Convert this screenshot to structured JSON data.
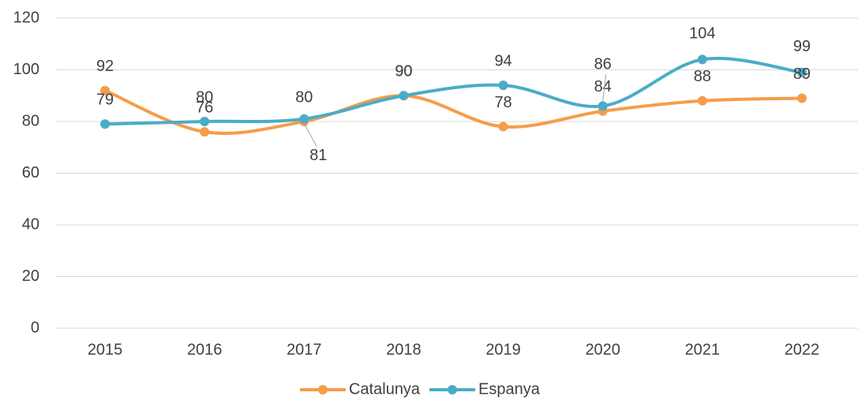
{
  "chart_data": {
    "type": "line",
    "categories": [
      "2015",
      "2016",
      "2017",
      "2018",
      "2019",
      "2020",
      "2021",
      "2022"
    ],
    "series": [
      {
        "name": "Catalunya",
        "color": "#f59d4a",
        "values": [
          92,
          76,
          80,
          90,
          78,
          84,
          88,
          89
        ]
      },
      {
        "name": "Espanya",
        "color": "#4bacc6",
        "values": [
          79,
          80,
          81,
          90,
          94,
          86,
          104,
          99
        ]
      }
    ],
    "ylim": [
      0,
      120
    ],
    "yticks": [
      0,
      20,
      40,
      60,
      80,
      100,
      120
    ],
    "grid": true,
    "legend": "bottom"
  }
}
